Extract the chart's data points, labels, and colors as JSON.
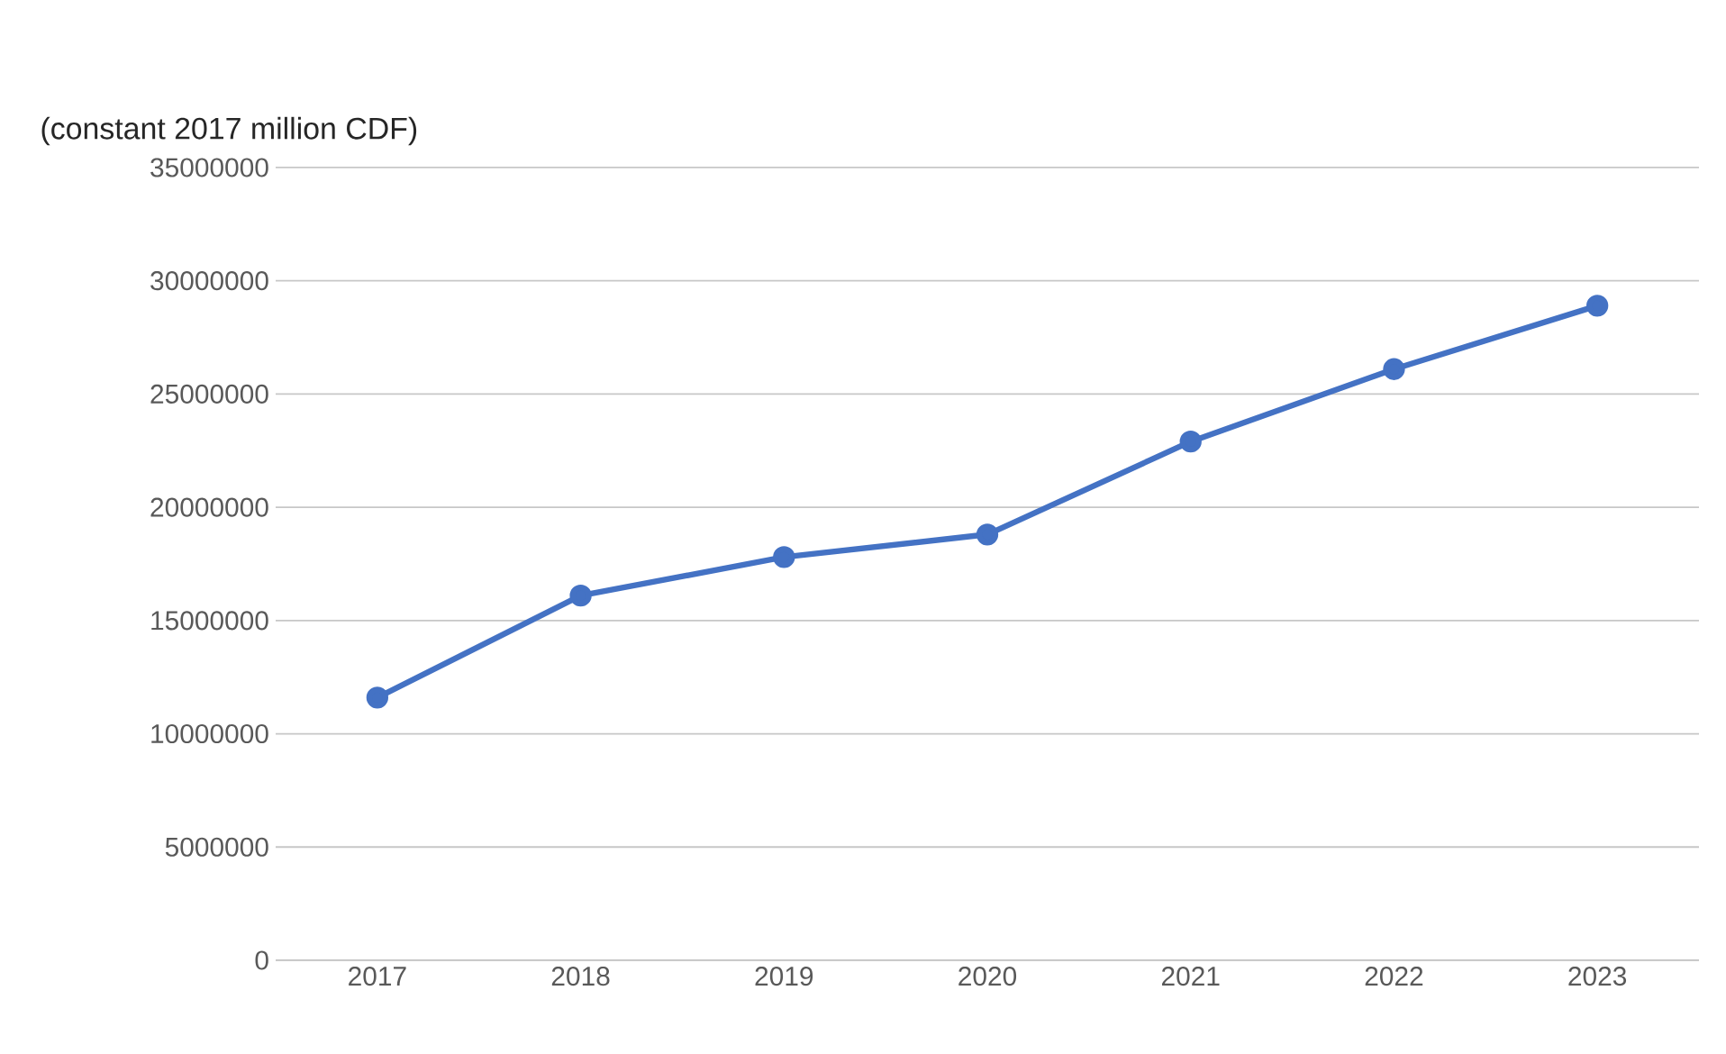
{
  "chart_data": {
    "type": "line",
    "title": "(constant 2017 million CDF)",
    "categories": [
      "2017",
      "2018",
      "2019",
      "2020",
      "2021",
      "2022",
      "2023"
    ],
    "series": [
      {
        "color": "#4472c4",
        "values": [
          11600000,
          16100000,
          17800000,
          18800000,
          22900000,
          26100000,
          28900000
        ]
      }
    ],
    "ylim": [
      0,
      35000000
    ],
    "yticks": [
      0,
      5000000,
      10000000,
      15000000,
      20000000,
      25000000,
      30000000,
      35000000
    ],
    "grid": "y",
    "marker": "circle",
    "line_style": "solid"
  }
}
